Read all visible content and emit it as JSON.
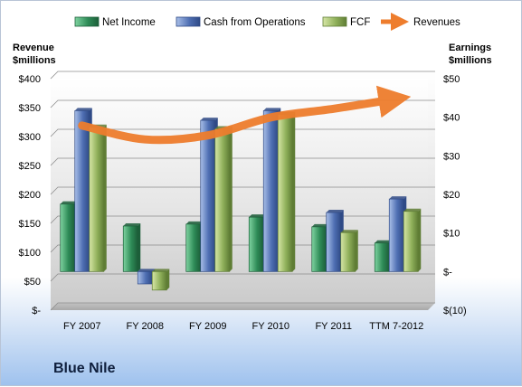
{
  "chart_data": {
    "type": "bar",
    "title": "",
    "company": "Blue Nile",
    "categories": [
      "FY 2007",
      "FY 2008",
      "FY 2009",
      "FY 2010",
      "FY 2011",
      "TTM 7-2012"
    ],
    "y_left": {
      "label_line1": "Revenue",
      "label_line2": "$millions",
      "range": [
        0,
        400
      ],
      "ticks": [
        "$-",
        "$50",
        "$100",
        "$150",
        "$200",
        "$250",
        "$300",
        "$350",
        "$400"
      ]
    },
    "y_right": {
      "label_line1": "Earnings",
      "label_line2": "$millions",
      "range": [
        -10,
        50
      ],
      "ticks": [
        "$(10)",
        "$-",
        "$10",
        "$20",
        "$30",
        "$40",
        "$50"
      ]
    },
    "series": [
      {
        "name": "Net Income",
        "axis": "right",
        "color": "#2e8b57",
        "values": [
          17.5,
          11.8,
          12.3,
          14.1,
          11.6,
          7.4
        ]
      },
      {
        "name": "Cash from Operations",
        "axis": "right",
        "color": "#4f6fb3",
        "values": [
          41.7,
          -3.2,
          39.2,
          41.7,
          15.3,
          18.8
        ]
      },
      {
        "name": "FCF",
        "axis": "right",
        "color": "#8fb05a",
        "values": [
          37.4,
          -4.8,
          37.0,
          40.7,
          10.1,
          15.6
        ]
      },
      {
        "name": "Revenues",
        "axis": "left",
        "type": "line",
        "color": "#ee7d2d",
        "values": [
          319,
          295,
          302,
          333,
          348,
          365
        ]
      }
    ],
    "grid": true,
    "legend": "top"
  }
}
